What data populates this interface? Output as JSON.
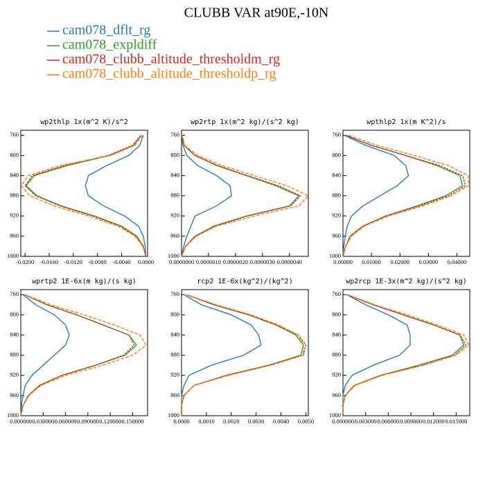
{
  "title": "CLUBB VAR at90E,-10N",
  "legend": [
    {
      "name": "cam078_dflt_rg",
      "color": "#2a7ab9"
    },
    {
      "name": "cam078_expldiff",
      "color": "#2ca02c"
    },
    {
      "name": "cam078_clubb_altitude_thresholdm_rg",
      "color": "#d62728"
    },
    {
      "name": "cam078_clubb_altitude_thresholdp_rg",
      "color": "#ff7f0e"
    }
  ],
  "chart_data": [
    {
      "type": "line",
      "title": "wp2thlp  1x(m^2 K)/s^2",
      "y": [
        760,
        780,
        800,
        820,
        840,
        860,
        880,
        900,
        920,
        940,
        960,
        980,
        1000
      ],
      "xlim": [
        -0.0207,
        0.0003
      ],
      "ylim": [
        1000,
        750
      ],
      "xticks": [
        {
          "value": -0.02,
          "label": "-0.0200"
        },
        {
          "value": -0.016,
          "label": "-0.0160"
        },
        {
          "value": -0.012,
          "label": "-0.0120"
        },
        {
          "value": -0.008,
          "label": "-0.0080"
        },
        {
          "value": -0.004,
          "label": "-0.0040"
        },
        {
          "value": 0,
          "label": "0.0000"
        }
      ],
      "yticks": [
        760,
        800,
        840,
        880,
        920,
        960,
        1000
      ],
      "series": [
        {
          "values": [
            -0.0004,
            -0.001,
            -0.0028,
            -0.0065,
            -0.0095,
            -0.01,
            -0.0095,
            -0.007,
            -0.0035,
            -0.0012,
            -0.0004,
            -0.0001,
            0
          ]
        },
        {
          "values": [
            -0.0008,
            -0.002,
            -0.006,
            -0.013,
            -0.0185,
            -0.0198,
            -0.018,
            -0.014,
            -0.0085,
            -0.004,
            -0.0015,
            -0.0004,
            0
          ]
        },
        {
          "values": [
            -0.0008,
            -0.0022,
            -0.0062,
            -0.0135,
            -0.0188,
            -0.02,
            -0.0182,
            -0.0142,
            -0.0088,
            -0.0042,
            -0.0016,
            -0.0004,
            0
          ]
        },
        {
          "values": [
            -0.0005,
            -0.0018,
            -0.0058,
            -0.0142,
            -0.0195,
            -0.0206,
            -0.0192,
            -0.0152,
            -0.0095,
            -0.0046,
            -0.0018,
            -0.0005,
            0
          ]
        }
      ]
    },
    {
      "type": "line",
      "title": "wp2rtp  1x(m^2 kg)/(s^2 kg)",
      "y": [
        760,
        780,
        800,
        820,
        840,
        860,
        880,
        900,
        920,
        940,
        960,
        980,
        1000
      ],
      "xlim": [
        0,
        4.7e-06
      ],
      "ylim": [
        1000,
        750
      ],
      "xticks": [
        {
          "value": 0,
          "label": "0.0000000"
        },
        {
          "value": 1e-06,
          "label": "0.0000010"
        },
        {
          "value": 2e-06,
          "label": "0.0000020"
        },
        {
          "value": 3e-06,
          "label": "0.0000030"
        },
        {
          "value": 4e-06,
          "label": "0.0000040"
        }
      ],
      "yticks": [
        760,
        800,
        840,
        880,
        920,
        960,
        1000
      ],
      "series": [
        {
          "values": [
            1e-08,
            5e-08,
            2e-07,
            6e-07,
            1.3e-06,
            1.8e-06,
            1.85e-06,
            1.3e-06,
            5e-07,
            3.5e-07,
            2e-07,
            8e-08,
            0
          ]
        },
        {
          "values": [
            2e-08,
            1e-07,
            5e-07,
            1.3e-06,
            2.4e-06,
            3.5e-06,
            4.35e-06,
            4e-06,
            2.4e-06,
            1.2e-06,
            5e-07,
            1.5e-07,
            0
          ]
        },
        {
          "values": [
            2e-08,
            1e-07,
            5e-07,
            1.35e-06,
            2.45e-06,
            3.6e-06,
            4.4e-06,
            4.05e-06,
            2.45e-06,
            1.25e-06,
            5e-07,
            1.5e-07,
            0
          ]
        },
        {
          "values": [
            2e-08,
            1.2e-07,
            6e-07,
            1.5e-06,
            2.7e-06,
            3.9e-06,
            4.7e-06,
            4.35e-06,
            2.7e-06,
            1.3e-06,
            5.5e-07,
            1.6e-07,
            0
          ]
        }
      ]
    },
    {
      "type": "line",
      "title": "wpthlp2  1x(m K^2)/s",
      "y": [
        760,
        780,
        800,
        820,
        840,
        860,
        880,
        900,
        920,
        940,
        960,
        980,
        1000
      ],
      "xlim": [
        0,
        0.0445
      ],
      "ylim": [
        1000,
        750
      ],
      "xticks": [
        {
          "value": 0,
          "label": "0.00000"
        },
        {
          "value": 0.01,
          "label": "0.01000"
        },
        {
          "value": 0.02,
          "label": "0.02000"
        },
        {
          "value": 0.03,
          "label": "0.03000"
        },
        {
          "value": 0.04,
          "label": "0.04000"
        }
      ],
      "yticks": [
        760,
        800,
        840,
        880,
        920,
        960,
        1000
      ],
      "series": [
        {
          "values": [
            0.0005,
            0.008,
            0.018,
            0.022,
            0.023,
            0.019,
            0.013,
            0.007,
            0.003,
            0.0015,
            0.0008,
            0.0003,
            0
          ]
        },
        {
          "values": [
            0.001,
            0.01,
            0.022,
            0.033,
            0.041,
            0.042,
            0.036,
            0.026,
            0.015,
            0.007,
            0.0025,
            0.001,
            0
          ]
        },
        {
          "values": [
            0.001,
            0.01,
            0.022,
            0.034,
            0.042,
            0.043,
            0.037,
            0.027,
            0.015,
            0.007,
            0.0025,
            0.001,
            0
          ]
        },
        {
          "values": [
            0.002,
            0.012,
            0.025,
            0.037,
            0.044,
            0.044,
            0.038,
            0.028,
            0.016,
            0.0075,
            0.003,
            0.001,
            0
          ]
        }
      ]
    },
    {
      "type": "line",
      "title": "wprtp2  1E-6x(m kg)/(s kg)",
      "y": [
        760,
        780,
        800,
        820,
        840,
        860,
        880,
        900,
        920,
        940,
        960,
        980,
        1000
      ],
      "xlim": [
        0,
        0.17
      ],
      "ylim": [
        1000,
        750
      ],
      "xticks": [
        {
          "value": 0,
          "label": "0.000000"
        },
        {
          "value": 0.03,
          "label": "0.030000"
        },
        {
          "value": 0.06,
          "label": "0.060000"
        },
        {
          "value": 0.09,
          "label": "0.090000"
        },
        {
          "value": 0.12,
          "label": "0.120000"
        },
        {
          "value": 0.15,
          "label": "0.150000"
        }
      ],
      "yticks": [
        760,
        800,
        840,
        880,
        920,
        960,
        1000
      ],
      "series": [
        {
          "values": [
            0.003,
            0.02,
            0.045,
            0.06,
            0.065,
            0.06,
            0.045,
            0.03,
            0.015,
            0.006,
            0.003,
            0.001,
            0
          ]
        },
        {
          "values": [
            0.005,
            0.035,
            0.075,
            0.11,
            0.145,
            0.155,
            0.14,
            0.1,
            0.055,
            0.025,
            0.01,
            0.003,
            0
          ]
        },
        {
          "values": [
            0.005,
            0.035,
            0.075,
            0.11,
            0.145,
            0.152,
            0.138,
            0.1,
            0.055,
            0.025,
            0.01,
            0.003,
            0
          ]
        },
        {
          "values": [
            0.005,
            0.04,
            0.085,
            0.125,
            0.16,
            0.168,
            0.15,
            0.11,
            0.06,
            0.027,
            0.011,
            0.003,
            0
          ]
        }
      ]
    },
    {
      "type": "line",
      "title": "rcp2  1E-6x(kg^2)/(kg^2)",
      "y": [
        760,
        780,
        800,
        820,
        840,
        860,
        880,
        900,
        920,
        940,
        960,
        980,
        1000
      ],
      "xlim": [
        0,
        0.0051
      ],
      "ylim": [
        1000,
        750
      ],
      "xticks": [
        {
          "value": 0,
          "label": "0.0000"
        },
        {
          "value": 0.001,
          "label": "0.0010"
        },
        {
          "value": 0.002,
          "label": "0.0020"
        },
        {
          "value": 0.003,
          "label": "0.0030"
        },
        {
          "value": 0.004,
          "label": "0.0040"
        },
        {
          "value": 0.005,
          "label": "0.0050"
        }
      ],
      "yticks": [
        760,
        800,
        840,
        880,
        920,
        960,
        1000
      ],
      "series": [
        {
          "values": [
            0.0001,
            0.0008,
            0.002,
            0.0028,
            0.0031,
            0.0032,
            0.0025,
            0.0012,
            0.0003,
            0.0001,
            0,
            0,
            0
          ]
        },
        {
          "values": [
            0.0002,
            0.0013,
            0.0027,
            0.0038,
            0.0046,
            0.0049,
            0.0048,
            0.0035,
            0.0018,
            0.0005,
            0.0001,
            0,
            0
          ]
        },
        {
          "values": [
            0.0002,
            0.0013,
            0.0027,
            0.0038,
            0.0047,
            0.005,
            0.0049,
            0.0035,
            0.0018,
            0.0005,
            0.0001,
            0,
            0
          ]
        },
        {
          "values": [
            0.0002,
            0.0014,
            0.0028,
            0.0039,
            0.0047,
            0.0049,
            0.0049,
            0.0036,
            0.0019,
            0.0005,
            0.0001,
            0,
            0
          ]
        }
      ]
    },
    {
      "type": "line",
      "title": "wp2rcp  1E-3x(m^2 kg)/(s^2 kg)",
      "y": [
        760,
        780,
        800,
        820,
        840,
        860,
        880,
        900,
        920,
        940,
        960,
        980,
        1000
      ],
      "xlim": [
        0,
        0.0168
      ],
      "ylim": [
        1000,
        750
      ],
      "xticks": [
        {
          "value": 0,
          "label": "0.000000"
        },
        {
          "value": 0.003,
          "label": "0.003000"
        },
        {
          "value": 0.006,
          "label": "0.006000"
        },
        {
          "value": 0.009,
          "label": "0.009000"
        },
        {
          "value": 0.012,
          "label": "0.012000"
        },
        {
          "value": 0.015,
          "label": "0.015000"
        }
      ],
      "yticks": [
        760,
        800,
        840,
        880,
        920,
        960,
        1000
      ],
      "series": [
        {
          "values": [
            0.0005,
            0.003,
            0.006,
            0.0085,
            0.0089,
            0.0089,
            0.0075,
            0.004,
            0.0012,
            0.0003,
            0,
            0,
            0
          ]
        },
        {
          "values": [
            0.0005,
            0.004,
            0.008,
            0.012,
            0.0155,
            0.016,
            0.0145,
            0.01,
            0.005,
            0.0015,
            0.0003,
            0,
            0
          ]
        },
        {
          "values": [
            0.0005,
            0.004,
            0.008,
            0.012,
            0.0155,
            0.0163,
            0.0148,
            0.0105,
            0.005,
            0.0015,
            0.0003,
            0,
            0
          ]
        },
        {
          "values": [
            0.0006,
            0.0042,
            0.0085,
            0.0125,
            0.016,
            0.0167,
            0.015,
            0.0107,
            0.0052,
            0.0016,
            0.0003,
            0,
            0
          ]
        }
      ]
    }
  ]
}
